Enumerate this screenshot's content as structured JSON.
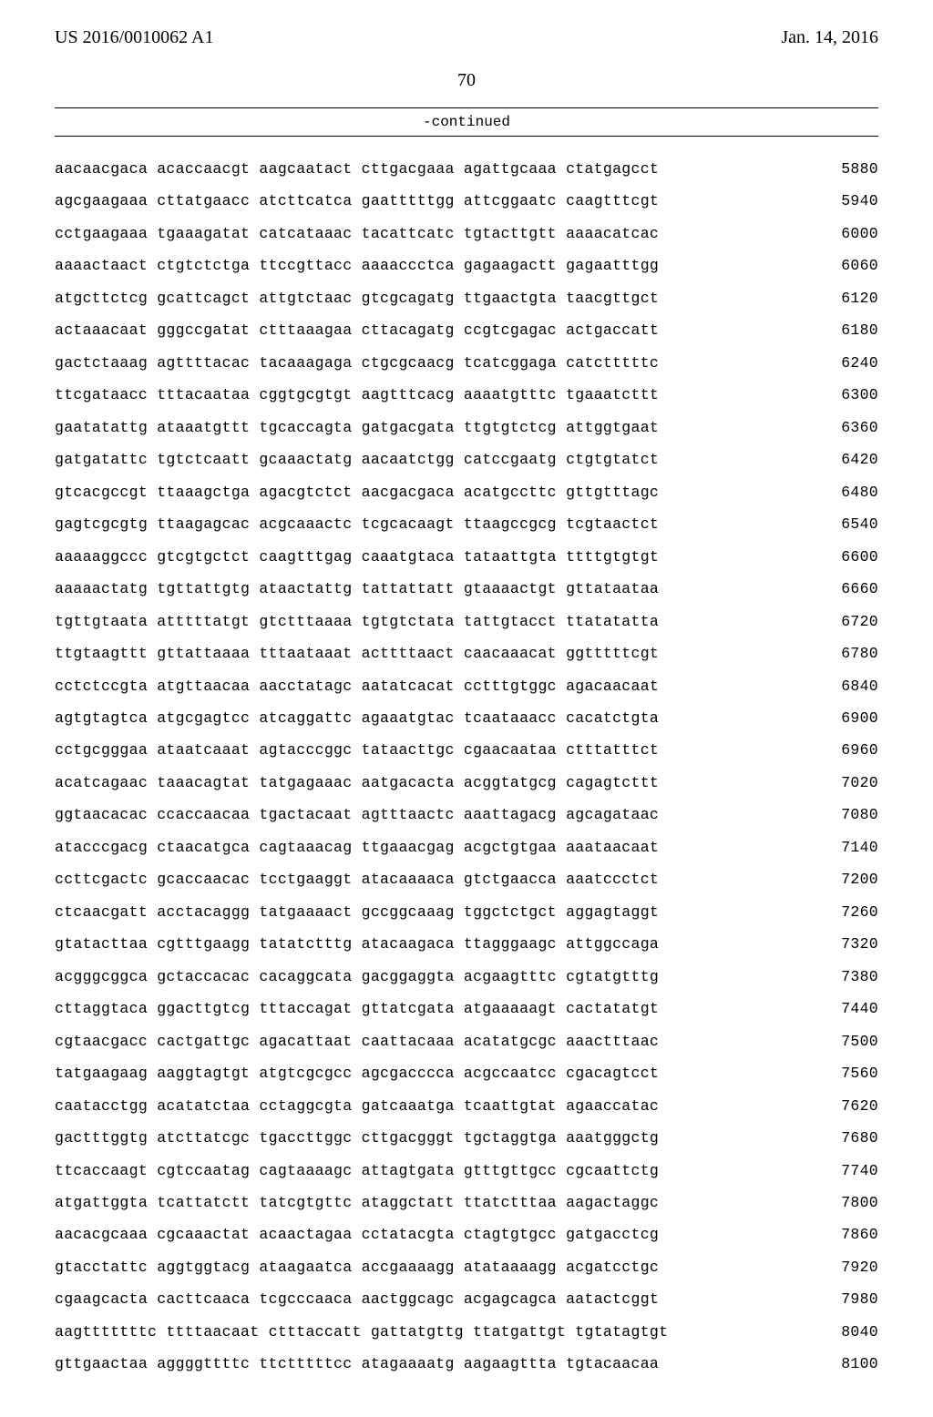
{
  "header": {
    "pub_number": "US 2016/0010062 A1",
    "pub_date": "Jan. 14, 2016"
  },
  "page_number": "70",
  "continued_label": "-continued",
  "sequence": {
    "lines": [
      {
        "groups": [
          "aacaacgaca",
          "acaccaacgt",
          "aagcaatact",
          "cttgacgaaa",
          "agattgcaaa",
          "ctatgagcct"
        ],
        "pos": 5880
      },
      {
        "groups": [
          "agcgaagaaa",
          "cttatgaacc",
          "atcttcatca",
          "gaatttttgg",
          "attcggaatc",
          "caagtttcgt"
        ],
        "pos": 5940
      },
      {
        "groups": [
          "cctgaagaaa",
          "tgaaagatat",
          "catcataaac",
          "tacattcatc",
          "tgtacttgtt",
          "aaaacatcac"
        ],
        "pos": 6000
      },
      {
        "groups": [
          "aaaactaact",
          "ctgtctctga",
          "ttccgttacc",
          "aaaaccctca",
          "gagaagactt",
          "gagaatttgg"
        ],
        "pos": 6060
      },
      {
        "groups": [
          "atgcttctcg",
          "gcattcagct",
          "attgtctaac",
          "gtcgcagatg",
          "ttgaactgta",
          "taacgttgct"
        ],
        "pos": 6120
      },
      {
        "groups": [
          "actaaacaat",
          "gggccgatat",
          "ctttaaagaa",
          "cttacagatg",
          "ccgtcgagac",
          "actgaccatt"
        ],
        "pos": 6180
      },
      {
        "groups": [
          "gactctaaag",
          "agttttacac",
          "tacaaagaga",
          "ctgcgcaacg",
          "tcatcggaga",
          "catctttttc"
        ],
        "pos": 6240
      },
      {
        "groups": [
          "ttcgataacc",
          "tttacaataa",
          "cggtgcgtgt",
          "aagtttcacg",
          "aaaatgtttc",
          "tgaaatcttt"
        ],
        "pos": 6300
      },
      {
        "groups": [
          "gaatatattg",
          "ataaatgttt",
          "tgcaccagta",
          "gatgacgata",
          "ttgtgtctcg",
          "attggtgaat"
        ],
        "pos": 6360
      },
      {
        "groups": [
          "gatgatattc",
          "tgtctcaatt",
          "gcaaactatg",
          "aacaatctgg",
          "catccgaatg",
          "ctgtgtatct"
        ],
        "pos": 6420
      },
      {
        "groups": [
          "gtcacgccgt",
          "ttaaagctga",
          "agacgtctct",
          "aacgacgaca",
          "acatgccttc",
          "gttgtttagc"
        ],
        "pos": 6480
      },
      {
        "groups": [
          "gagtcgcgtg",
          "ttaagagcac",
          "acgcaaactc",
          "tcgcacaagt",
          "ttaagccgcg",
          "tcgtaactct"
        ],
        "pos": 6540
      },
      {
        "groups": [
          "aaaaaggccc",
          "gtcgtgctct",
          "caagtttgag",
          "caaatgtaca",
          "tataattgta",
          "ttttgtgtgt"
        ],
        "pos": 6600
      },
      {
        "groups": [
          "aaaaactatg",
          "tgttattgtg",
          "ataactattg",
          "tattattatt",
          "gtaaaactgt",
          "gttataataa"
        ],
        "pos": 6660
      },
      {
        "groups": [
          "tgttgtaata",
          "atttttatgt",
          "gtctttaaaa",
          "tgtgtctata",
          "tattgtacct",
          "ttatatatta"
        ],
        "pos": 6720
      },
      {
        "groups": [
          "ttgtaagttt",
          "gttattaaaa",
          "tttaataaat",
          "acttttaact",
          "caacaaacat",
          "ggtttttcgt"
        ],
        "pos": 6780
      },
      {
        "groups": [
          "cctctccgta",
          "atgttaacaa",
          "aacctatagc",
          "aatatcacat",
          "cctttgtggc",
          "agacaacaat"
        ],
        "pos": 6840
      },
      {
        "groups": [
          "agtgtagtca",
          "atgcgagtcc",
          "atcaggattc",
          "agaaatgtac",
          "tcaataaacc",
          "cacatctgta"
        ],
        "pos": 6900
      },
      {
        "groups": [
          "cctgcgggaa",
          "ataatcaaat",
          "agtacccggc",
          "tataacttgc",
          "cgaacaataa",
          "ctttatttct"
        ],
        "pos": 6960
      },
      {
        "groups": [
          "acatcagaac",
          "taaacagtat",
          "tatgagaaac",
          "aatgacacta",
          "acggtatgcg",
          "cagagtcttt"
        ],
        "pos": 7020
      },
      {
        "groups": [
          "ggtaacacac",
          "ccaccaacaa",
          "tgactacaat",
          "agtttaactc",
          "aaattagacg",
          "agcagataac"
        ],
        "pos": 7080
      },
      {
        "groups": [
          "atacccgacg",
          "ctaacatgca",
          "cagtaaacag",
          "ttgaaacgag",
          "acgctgtgaa",
          "aaataacaat"
        ],
        "pos": 7140
      },
      {
        "groups": [
          "ccttcgactc",
          "gcaccaacac",
          "tcctgaaggt",
          "atacaaaaca",
          "gtctgaacca",
          "aaatccctct"
        ],
        "pos": 7200
      },
      {
        "groups": [
          "ctcaacgatt",
          "acctacaggg",
          "tatgaaaact",
          "gccggcaaag",
          "tggctctgct",
          "aggagtaggt"
        ],
        "pos": 7260
      },
      {
        "groups": [
          "gtatacttaa",
          "cgtttgaagg",
          "tatatctttg",
          "atacaagaca",
          "ttagggaagc",
          "attggccaga"
        ],
        "pos": 7320
      },
      {
        "groups": [
          "acgggcggca",
          "gctaccacac",
          "cacaggcata",
          "gacggaggta",
          "acgaagtttc",
          "cgtatgtttg"
        ],
        "pos": 7380
      },
      {
        "groups": [
          "cttaggtaca",
          "ggacttgtcg",
          "tttaccagat",
          "gttatcgata",
          "atgaaaaagt",
          "cactatatgt"
        ],
        "pos": 7440
      },
      {
        "groups": [
          "cgtaacgacc",
          "cactgattgc",
          "agacattaat",
          "caattacaaa",
          "acatatgcgc",
          "aaactttaac"
        ],
        "pos": 7500
      },
      {
        "groups": [
          "tatgaagaag",
          "aaggtagtgt",
          "atgtcgcgcc",
          "agcgacccca",
          "acgccaatcc",
          "cgacagtcct"
        ],
        "pos": 7560
      },
      {
        "groups": [
          "caatacctgg",
          "acatatctaa",
          "cctaggcgta",
          "gatcaaatga",
          "tcaattgtat",
          "agaaccatac"
        ],
        "pos": 7620
      },
      {
        "groups": [
          "gactttggtg",
          "atcttatcgc",
          "tgaccttggc",
          "cttgacgggt",
          "tgctaggtga",
          "aaatgggctg"
        ],
        "pos": 7680
      },
      {
        "groups": [
          "ttcaccaagt",
          "cgtccaatag",
          "cagtaaaagc",
          "attagtgata",
          "gtttgttgcc",
          "cgcaattctg"
        ],
        "pos": 7740
      },
      {
        "groups": [
          "atgattggta",
          "tcattatctt",
          "tatcgtgttc",
          "ataggctatt",
          "ttatctttaa",
          "aagactaggc"
        ],
        "pos": 7800
      },
      {
        "groups": [
          "aacacgcaaa",
          "cgcaaactat",
          "acaactagaa",
          "cctatacgta",
          "ctagtgtgcc",
          "gatgacctcg"
        ],
        "pos": 7860
      },
      {
        "groups": [
          "gtacctattc",
          "aggtggtacg",
          "ataagaatca",
          "accgaaaagg",
          "atataaaagg",
          "acgatcctgc"
        ],
        "pos": 7920
      },
      {
        "groups": [
          "cgaagcacta",
          "cacttcaaca",
          "tcgcccaaca",
          "aactggcagc",
          "acgagcagca",
          "aatactcggt"
        ],
        "pos": 7980
      },
      {
        "groups": [
          "aagtttttttc",
          "ttttaacaat",
          "ctttaccatt",
          "gattatgttg",
          "ttatgattgt",
          "tgtatagtgt"
        ],
        "pos": 8040
      },
      {
        "groups": [
          "gttgaactaa",
          "aggggttttc",
          "ttctttttcc",
          "atagaaaatg",
          "aagaagttta",
          "tgtacaacaa"
        ],
        "pos": 8100
      }
    ]
  }
}
